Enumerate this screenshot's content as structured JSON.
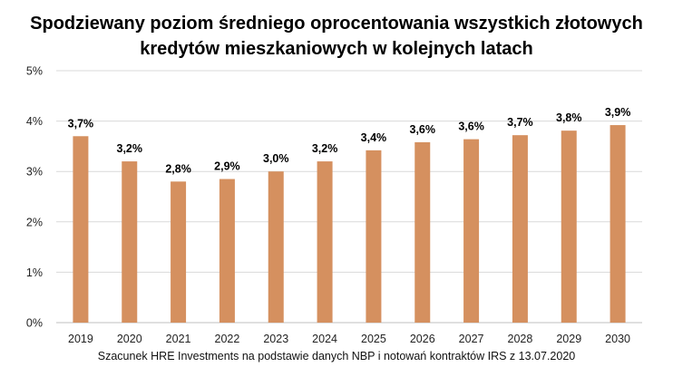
{
  "chart_data": {
    "type": "bar",
    "title_lines": [
      "Spodziewany poziom średniego oprocentowania wszystkich złotowych",
      "kredytów mieszkaniowych w kolejnych latach"
    ],
    "xlabel": "",
    "ylabel": "",
    "categories": [
      "2019",
      "2020",
      "2021",
      "2022",
      "2023",
      "2024",
      "2025",
      "2026",
      "2027",
      "2028",
      "2029",
      "2030"
    ],
    "values": [
      3.7,
      3.2,
      2.8,
      2.85,
      3.0,
      3.2,
      3.42,
      3.58,
      3.64,
      3.72,
      3.81,
      3.92
    ],
    "data_labels": [
      "3,7%",
      "3,2%",
      "2,8%",
      "2,9%",
      "3,0%",
      "3,2%",
      "3,4%",
      "3,6%",
      "3,6%",
      "3,7%",
      "3,8%",
      "3,9%"
    ],
    "ylim": [
      0,
      5
    ],
    "yticks": [
      0,
      1,
      2,
      3,
      4,
      5
    ],
    "ytick_labels": [
      "0%",
      "1%",
      "2%",
      "3%",
      "4%",
      "5%"
    ],
    "grid": true,
    "legend": "none",
    "bar_color": "#D5905F",
    "grid_color": "#D9D9D9"
  },
  "source_note": "Szacunek HRE Investments na podstawie danych NBP i notowań kontraktów IRS z 13.07.2020"
}
